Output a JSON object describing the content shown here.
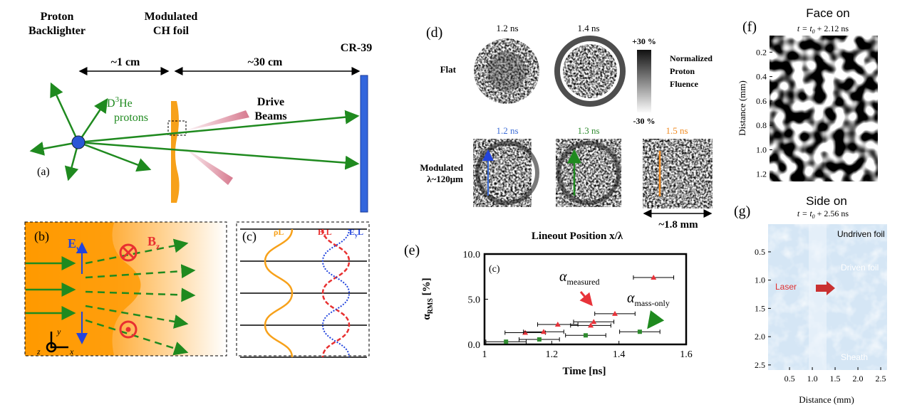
{
  "panels": {
    "a": {
      "label": "(a)",
      "source": [
        "Proton",
        "Backlighter"
      ],
      "foil": [
        "Modulated",
        "CH foil"
      ],
      "detector": "CR-39",
      "dist1": "~1 cm",
      "dist2": "~30 cm",
      "protons": {
        "main": "D",
        "sup": "3",
        "rest": "He",
        "line2": "protons"
      },
      "beams": [
        "Drive",
        "Beams"
      ]
    },
    "b": {
      "label": "(b)",
      "e_field": {
        "main": "E",
        "sub": "y"
      },
      "b_field": {
        "main": "B",
        "sub": "z"
      },
      "axis_y": "y",
      "axis_x": "x",
      "axis_z": "z"
    },
    "c": {
      "label": "(c)",
      "rho": "ρL",
      "bz": {
        "main": "B",
        "sub": "z",
        "rest": "L"
      },
      "ey": {
        "main": "E",
        "sub": "y",
        "rest": "L"
      }
    },
    "d": {
      "label": "(d)",
      "flat_times": [
        "1.2 ns",
        "1.4 ns"
      ],
      "mod_times": [
        "1.2 ns",
        "1.3 ns",
        "1.5 ns"
      ],
      "flat": "Flat",
      "modulated": [
        "Modulated",
        "λ~120μm"
      ],
      "scale_top": "+30 %",
      "scale_bottom": "-30 %",
      "scale_title": [
        "Normalized",
        "Proton",
        "Fluence"
      ],
      "size": "~1.8 mm",
      "lineout": "Lineout Position x/λ"
    },
    "f": {
      "title": "Face on",
      "label": "(f)",
      "time": {
        "pre": "t = t",
        "sub": "0",
        "post": " + 2.12 ns"
      },
      "y_label": "Distance (mm)",
      "ylim": [
        0.064,
        1.26
      ],
      "yticks": [
        0.2,
        0.4,
        0.6,
        0.8,
        {
          "value": 1.0,
          "label": "1.0"
        },
        1.2
      ]
    },
    "g": {
      "title": "Side on",
      "label": "(g)",
      "time": {
        "pre": "t = t",
        "sub": "0",
        "post": " + 2.56 ns"
      },
      "x_label": "Distance (mm)",
      "xlim": [
        0.03,
        2.64
      ],
      "ylim": [
        0.01,
        2.59
      ],
      "xticks": [
        0.5,
        {
          "value": 1.0,
          "label": "1.0"
        },
        1.5,
        {
          "value": 2.0,
          "label": "2.0"
        },
        2.5
      ],
      "yticks": [
        0.5,
        {
          "value": 1.0,
          "label": "1.0"
        },
        1.5,
        {
          "value": 2.0,
          "label": "2.0"
        },
        2.5
      ],
      "notes": [
        "Undriven foil",
        "Driven foil",
        "Laser",
        "Sheath"
      ]
    }
  },
  "chart_data": {
    "type": "errorbar",
    "label": "(e)",
    "inner_label": "(c)",
    "x_label": "Time [ns]",
    "y_label": {
      "main": "α",
      "sub": "RMS",
      "tail": " [%]"
    },
    "xlim": [
      1,
      1.6
    ],
    "ylim": [
      0,
      10
    ],
    "xticks": [
      1,
      1.2,
      1.4,
      1.6
    ],
    "yticks": [
      {
        "value": 0,
        "label": "0.0"
      },
      {
        "value": 5,
        "label": "5.0"
      },
      {
        "value": 10,
        "label": "10.0"
      }
    ],
    "annotations": [
      {
        "main": "α",
        "sub": "measured"
      },
      {
        "main": "α",
        "sub": "mass-only"
      }
    ],
    "series": [
      {
        "name": "measured",
        "color": "#e8333a",
        "marker": "triangle",
        "x": [
          1.121,
          1.176,
          1.218,
          1.316,
          1.325,
          1.388,
          1.503
        ],
        "values": [
          1.3,
          1.4,
          2.2,
          2.1,
          2.5,
          3.4,
          7.4
        ],
        "x_err": [
          0.06,
          0.06,
          0.06,
          0.06,
          0.06,
          0.06,
          0.06
        ]
      },
      {
        "name": "mass-only",
        "color": "#2e8b2e",
        "marker": "square",
        "x": [
          1.064,
          1.163,
          1.301,
          1.462
        ],
        "values": [
          0.3,
          0.55,
          1.0,
          1.4
        ],
        "x_err": [
          0.06,
          0.06,
          0.06,
          0.06
        ]
      }
    ]
  }
}
